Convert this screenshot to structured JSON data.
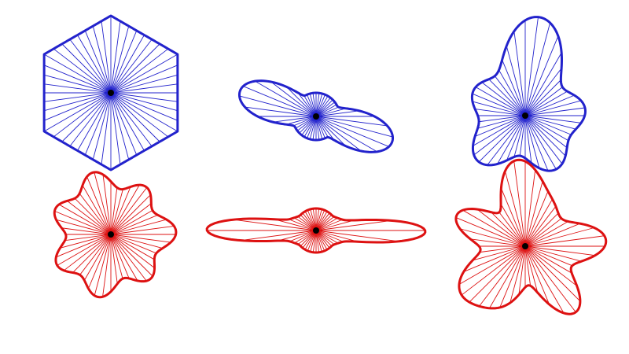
{
  "colors": {
    "blue": "#2222cc",
    "red": "#dd1111",
    "center": "#000000",
    "background": "#ffffff"
  },
  "shapes": [
    {
      "id": "hexagon",
      "color_key": "blue",
      "spokes": 48
    },
    {
      "id": "blob-flower",
      "color_key": "red",
      "spokes": 48
    },
    {
      "id": "four-petal-flower",
      "color_key": "blue",
      "spokes": 48
    },
    {
      "id": "four-point-star",
      "color_key": "red",
      "spokes": 48
    },
    {
      "id": "irregular-blob-top",
      "color_key": "blue",
      "spokes": 48
    },
    {
      "id": "irregular-blob-bottom",
      "color_key": "red",
      "spokes": 48
    }
  ]
}
